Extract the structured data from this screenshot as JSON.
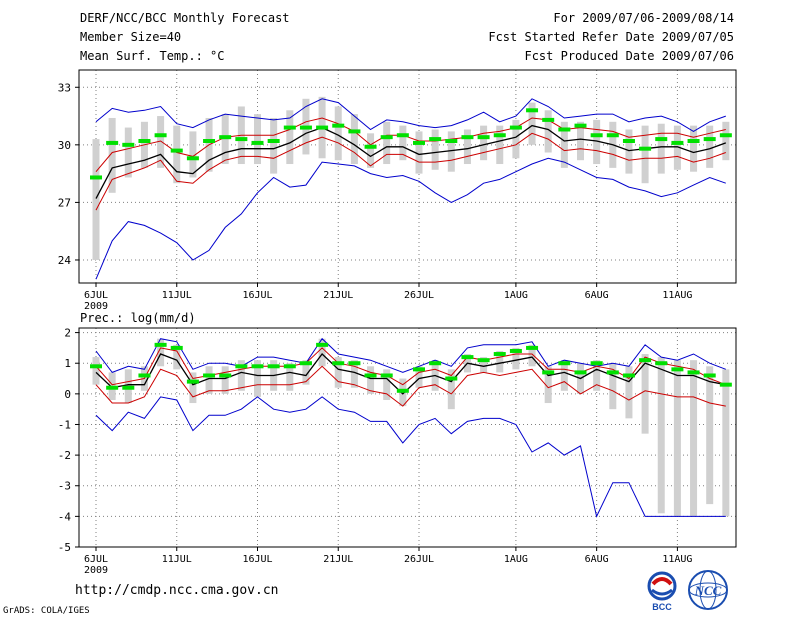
{
  "header": {
    "left": [
      "DERF/NCC/BCC Monthly Forecast",
      "Member Size=40",
      "Mean Surf. Temp.: °C"
    ],
    "right": [
      "For 2009/07/06-2009/08/14",
      "Fcst Started Refer Date 2009/07/05",
      "Fcst Produced Date 2009/07/06"
    ]
  },
  "footer": {
    "url": "http://cmdp.ncc.cma.gov.cn",
    "credit": "GrADS: COLA/IGES",
    "logo_bcc_text": "BCC",
    "logo_ncc_text": "NCC"
  },
  "colors": {
    "box": "#d0d0d0",
    "median": "#00e000",
    "max_min": "#0000cc",
    "band": "#cc0000",
    "mean": "#000000",
    "grid": "#808080"
  },
  "chart_data": [
    {
      "type": "line",
      "title": "Mean Surf. Temp.: °C",
      "x_tick_labels": [
        "6JUL",
        "11JUL",
        "16JUL",
        "21JUL",
        "26JUL",
        "1AUG",
        "6AUG",
        "11AUG"
      ],
      "x_tick_days": [
        0,
        5,
        10,
        15,
        20,
        26,
        31,
        36
      ],
      "year_label": "2009",
      "ylim": [
        22.8,
        33.9
      ],
      "yticks": [
        24,
        27,
        30,
        33
      ],
      "days": 40,
      "series": [
        {
          "name": "max",
          "values": [
            23.0,
            25.0,
            26.0,
            25.8,
            25.4,
            24.9,
            24.0,
            24.5,
            25.7,
            26.4,
            27.5,
            28.3,
            27.8,
            27.9,
            29.1,
            29.0,
            28.9,
            28.5,
            28.3,
            28.4,
            28.1,
            27.5,
            27.0,
            27.4,
            28.0,
            28.2,
            28.6,
            29.0,
            29.3,
            29.1,
            28.7,
            28.3,
            28.2,
            27.8,
            27.6,
            27.3,
            27.5,
            27.9,
            28.3,
            28.0
          ]
        },
        {
          "name": "min",
          "values": [
            31.2,
            31.9,
            31.7,
            31.8,
            32.0,
            31.1,
            30.9,
            31.3,
            31.6,
            31.5,
            31.4,
            31.3,
            31.4,
            32.0,
            32.4,
            32.2,
            31.5,
            30.8,
            31.3,
            31.2,
            31.0,
            30.9,
            31.0,
            31.3,
            31.7,
            31.2,
            31.5,
            32.4,
            32.0,
            31.4,
            31.5,
            31.6,
            31.6,
            31.2,
            31.4,
            31.5,
            31.2,
            30.7,
            31.2,
            31.5
          ]
        },
        {
          "name": "upper",
          "values": [
            28.6,
            29.6,
            29.8,
            30.0,
            30.2,
            29.6,
            29.4,
            30.0,
            30.4,
            30.5,
            30.5,
            30.5,
            30.8,
            31.2,
            31.4,
            31.1,
            30.7,
            30.0,
            30.5,
            30.5,
            30.2,
            30.2,
            30.3,
            30.4,
            30.6,
            30.7,
            30.9,
            31.4,
            31.3,
            30.8,
            30.9,
            30.8,
            30.7,
            30.4,
            30.5,
            30.6,
            30.6,
            30.4,
            30.6,
            30.8
          ]
        },
        {
          "name": "mean",
          "values": [
            27.2,
            28.8,
            29.0,
            29.2,
            29.5,
            28.6,
            28.5,
            29.2,
            29.6,
            29.8,
            29.8,
            29.8,
            30.1,
            30.6,
            30.9,
            30.5,
            30.0,
            29.4,
            29.9,
            29.9,
            29.5,
            29.6,
            29.7,
            29.8,
            30.0,
            30.2,
            30.4,
            31.0,
            30.8,
            30.2,
            30.3,
            30.2,
            30.0,
            29.7,
            29.8,
            29.9,
            29.9,
            29.6,
            29.8,
            30.1
          ]
        },
        {
          "name": "lower",
          "values": [
            26.6,
            28.2,
            28.5,
            28.8,
            29.2,
            28.1,
            28.0,
            28.7,
            29.2,
            29.4,
            29.4,
            29.3,
            29.7,
            30.1,
            30.4,
            30.1,
            29.6,
            28.9,
            29.5,
            29.5,
            29.1,
            29.1,
            29.2,
            29.4,
            29.6,
            29.8,
            30.0,
            30.6,
            30.3,
            29.7,
            29.8,
            29.7,
            29.5,
            29.2,
            29.3,
            29.3,
            29.4,
            29.1,
            29.3,
            29.6
          ]
        },
        {
          "name": "median",
          "values": [
            28.3,
            30.1,
            30.0,
            30.2,
            30.5,
            29.7,
            29.3,
            30.2,
            30.4,
            30.3,
            30.1,
            30.2,
            30.9,
            30.9,
            30.9,
            31.0,
            30.7,
            29.9,
            30.4,
            30.5,
            30.1,
            30.3,
            30.2,
            30.4,
            30.4,
            30.5,
            30.9,
            31.8,
            31.3,
            30.8,
            31.0,
            30.5,
            30.5,
            30.2,
            29.8,
            30.3,
            30.1,
            30.2,
            30.3,
            30.5
          ]
        },
        {
          "name": "box_low",
          "values": [
            24.0,
            27.5,
            28.3,
            28.8,
            28.8,
            28.0,
            28.3,
            28.6,
            29.0,
            29.0,
            29.0,
            28.5,
            29.0,
            29.5,
            29.3,
            29.2,
            29.0,
            28.8,
            29.0,
            29.2,
            28.5,
            28.7,
            28.6,
            29.0,
            29.2,
            29.0,
            29.3,
            30.0,
            29.6,
            28.8,
            29.2,
            29.0,
            28.8,
            28.5,
            28.0,
            28.5,
            28.7,
            28.6,
            28.8,
            29.2
          ]
        },
        {
          "name": "box_high",
          "values": [
            30.3,
            31.4,
            30.9,
            31.2,
            31.5,
            31.0,
            30.7,
            31.4,
            31.6,
            32.0,
            31.6,
            31.4,
            31.8,
            32.4,
            32.5,
            32.0,
            31.6,
            30.6,
            31.2,
            31.0,
            30.7,
            30.8,
            30.7,
            30.8,
            31.0,
            31.0,
            31.3,
            32.2,
            31.8,
            31.2,
            31.2,
            31.3,
            31.2,
            30.8,
            31.0,
            31.1,
            31.0,
            31.0,
            31.0,
            31.2
          ]
        }
      ]
    },
    {
      "type": "line",
      "title": "Prec.: log(mm/d)",
      "x_tick_labels": [
        "6JUL",
        "11JUL",
        "16JUL",
        "21JUL",
        "26JUL",
        "1AUG",
        "6AUG",
        "11AUG"
      ],
      "x_tick_days": [
        0,
        5,
        10,
        15,
        20,
        26,
        31,
        36
      ],
      "year_label": "2009",
      "ylim": [
        -5,
        2.15
      ],
      "yticks": [
        -5,
        -4,
        -3,
        -2,
        -1,
        0,
        1,
        2
      ],
      "days": 40,
      "series": [
        {
          "name": "max",
          "values": [
            1.4,
            0.7,
            0.9,
            0.8,
            1.8,
            1.7,
            0.8,
            1.0,
            1.0,
            0.9,
            1.2,
            1.2,
            1.1,
            1.0,
            1.8,
            1.3,
            1.2,
            1.1,
            0.9,
            0.7,
            0.9,
            1.1,
            0.9,
            1.5,
            1.6,
            1.6,
            1.6,
            1.7,
            0.9,
            1.1,
            1.0,
            0.9,
            1.0,
            0.9,
            1.6,
            1.2,
            1.1,
            1.3,
            1.0,
            0.8
          ]
        },
        {
          "name": "min",
          "values": [
            -0.7,
            -1.2,
            -0.6,
            -0.8,
            -0.1,
            -0.2,
            -1.2,
            -0.7,
            -0.7,
            -0.5,
            -0.1,
            -0.5,
            -0.6,
            -0.5,
            -0.1,
            -0.5,
            -0.6,
            -0.9,
            -0.9,
            -1.6,
            -1.0,
            -0.8,
            -1.3,
            -0.9,
            -0.8,
            -0.8,
            -1.0,
            -1.9,
            -1.6,
            -2.0,
            -1.7,
            -4.0,
            -2.9,
            -2.9,
            -4.0,
            -4.0,
            -4.0,
            -4.0,
            -4.0,
            -4.0
          ]
        },
        {
          "name": "upper",
          "values": [
            0.9,
            0.3,
            0.4,
            0.5,
            1.5,
            1.4,
            0.5,
            0.6,
            0.7,
            0.8,
            0.9,
            0.9,
            0.9,
            1.0,
            1.5,
            1.0,
            0.9,
            0.7,
            0.6,
            0.3,
            0.7,
            0.8,
            0.6,
            1.2,
            1.1,
            1.2,
            1.3,
            1.3,
            0.8,
            0.8,
            0.7,
            0.9,
            0.8,
            0.5,
            1.2,
            1.0,
            0.9,
            0.8,
            0.5,
            0.3
          ]
        },
        {
          "name": "mean",
          "values": [
            0.7,
            0.2,
            0.3,
            0.3,
            1.3,
            1.1,
            0.3,
            0.5,
            0.5,
            0.7,
            0.6,
            0.6,
            0.7,
            0.6,
            1.3,
            0.8,
            0.7,
            0.5,
            0.5,
            0.0,
            0.5,
            0.6,
            0.4,
            1.0,
            0.9,
            1.0,
            1.1,
            1.2,
            0.6,
            0.7,
            0.5,
            0.8,
            0.6,
            0.4,
            1.0,
            0.8,
            0.6,
            0.6,
            0.4,
            0.3
          ]
        },
        {
          "name": "lower",
          "values": [
            0.3,
            -0.3,
            -0.3,
            -0.1,
            0.8,
            0.6,
            -0.1,
            0.1,
            0.1,
            0.2,
            0.3,
            0.3,
            0.3,
            0.4,
            0.9,
            0.4,
            0.3,
            0.1,
            0.0,
            -0.4,
            0.2,
            0.3,
            0.0,
            0.6,
            0.7,
            0.6,
            0.7,
            0.8,
            0.2,
            0.4,
            0.0,
            0.3,
            0.1,
            -0.2,
            0.1,
            0.0,
            -0.1,
            -0.1,
            -0.3,
            -0.4
          ]
        },
        {
          "name": "median",
          "values": [
            0.9,
            0.2,
            0.2,
            0.6,
            1.6,
            1.5,
            0.4,
            0.6,
            0.6,
            0.9,
            0.9,
            0.9,
            0.9,
            1.0,
            1.6,
            1.0,
            1.0,
            0.6,
            0.6,
            0.1,
            0.8,
            1.0,
            0.5,
            1.2,
            1.1,
            1.3,
            1.4,
            1.5,
            0.7,
            1.0,
            0.7,
            1.0,
            0.7,
            0.6,
            1.1,
            1.0,
            0.8,
            0.7,
            0.6,
            0.3
          ]
        },
        {
          "name": "box_low",
          "values": [
            0.3,
            -0.2,
            -0.3,
            0.1,
            0.9,
            0.8,
            -0.3,
            0.0,
            0.0,
            0.1,
            -0.1,
            0.1,
            0.1,
            0.3,
            0.9,
            0.2,
            0.2,
            0.0,
            -0.2,
            -0.4,
            0.2,
            0.1,
            -0.5,
            0.7,
            0.7,
            0.7,
            0.8,
            0.9,
            -0.3,
            0.1,
            0.0,
            0.1,
            -0.5,
            -0.8,
            -1.3,
            -3.9,
            -4.0,
            -4.0,
            -3.6,
            -4.0
          ]
        },
        {
          "name": "box_high",
          "values": [
            1.2,
            0.7,
            0.8,
            0.9,
            1.8,
            1.6,
            0.7,
            0.9,
            0.9,
            1.1,
            1.1,
            1.1,
            1.0,
            1.1,
            1.8,
            1.2,
            1.1,
            0.9,
            0.8,
            0.5,
            0.9,
            1.1,
            0.8,
            1.3,
            1.2,
            1.4,
            1.5,
            1.6,
            0.9,
            1.1,
            1.0,
            1.1,
            1.0,
            0.9,
            1.3,
            1.2,
            1.1,
            1.1,
            0.9,
            0.8
          ]
        }
      ]
    }
  ]
}
